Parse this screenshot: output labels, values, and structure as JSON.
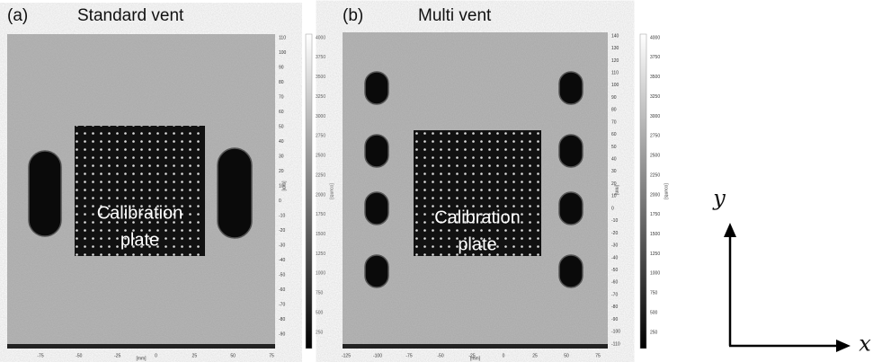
{
  "panels": [
    {
      "label": "(a)",
      "title": "Standard vent",
      "plate_label": [
        "Calibration",
        "plate"
      ],
      "y_ticks": [
        110,
        100,
        90,
        80,
        70,
        60,
        50,
        40,
        30,
        20,
        10,
        0,
        -10,
        -20,
        -30,
        -40,
        -50,
        -60,
        -70,
        -80,
        -90
      ],
      "x_ticks": [
        -75,
        -50,
        -25,
        0,
        25,
        50,
        75
      ],
      "colorbar_ticks": [
        4000,
        3750,
        3500,
        3250,
        3000,
        2750,
        2500,
        2250,
        2000,
        1750,
        1500,
        1250,
        1000,
        750,
        500,
        250
      ],
      "axis_unit": "[mm]",
      "colorbar_unit": "[counts]"
    },
    {
      "label": "(b)",
      "title": "Multi vent",
      "plate_label": [
        "Calibration",
        "plate"
      ],
      "y_ticks": [
        140,
        130,
        120,
        110,
        100,
        90,
        80,
        70,
        60,
        50,
        40,
        30,
        20,
        10,
        0,
        -10,
        -20,
        -30,
        -40,
        -50,
        -60,
        -70,
        -80,
        -90,
        -100,
        -110
      ],
      "x_ticks": [
        -125,
        -100,
        -75,
        -50,
        -25,
        0,
        25,
        50,
        75
      ],
      "colorbar_ticks": [
        4000,
        3750,
        3500,
        3250,
        3000,
        2750,
        2500,
        2250,
        2000,
        1750,
        1500,
        1250,
        1000,
        750,
        500,
        250
      ],
      "axis_unit": "[mm]",
      "colorbar_unit": "[counts]"
    }
  ],
  "axes": {
    "x": "x",
    "y": "y"
  }
}
